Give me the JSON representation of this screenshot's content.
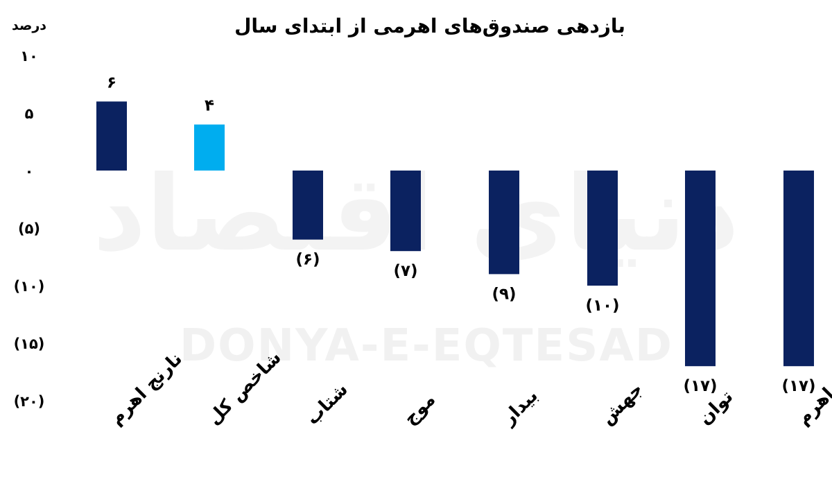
{
  "watermark": {
    "latin": "DONYA-E-EQTESAD",
    "persian": "دنیای اقتصاد"
  },
  "chart_data": {
    "type": "bar",
    "title": "بازدهی صندوق‌های اهرمی از ابتدای سال",
    "ylabel": "درصد",
    "ylim": [
      -20,
      10
    ],
    "yticks": [
      10,
      5,
      0,
      -5,
      -10,
      -15,
      -20
    ],
    "ytick_labels": [
      "۱۰",
      "۵",
      "۰",
      "(۵)",
      "(۱۰)",
      "(۱۵)",
      "(۲۰)"
    ],
    "grid": false,
    "categories": [
      "نارنج اهرم",
      "شاخص کل",
      "شتاب",
      "موج",
      "بیدار",
      "جهش",
      "توان",
      "اهرم"
    ],
    "values": [
      6,
      4,
      -6,
      -7,
      -9,
      -10,
      -17,
      -17
    ],
    "value_labels": [
      "۶",
      "۴",
      "(۶)",
      "(۷)",
      "(۹)",
      "(۱۰)",
      "(۱۷)",
      "(۱۷)"
    ],
    "colors": [
      "#0b2260",
      "#00adef",
      "#0b2260",
      "#0b2260",
      "#0b2260",
      "#0b2260",
      "#0b2260",
      "#0b2260"
    ]
  }
}
